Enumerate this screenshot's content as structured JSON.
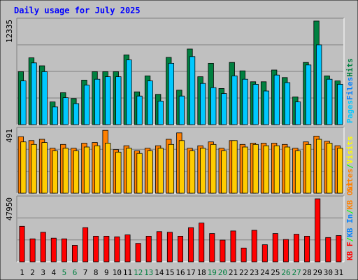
{
  "chart_data": {
    "type": "bar",
    "title": "Daily usage for July 2025",
    "categories": [
      "1",
      "2",
      "3",
      "4",
      "5",
      "6",
      "7",
      "8",
      "9",
      "10",
      "11",
      "12",
      "13",
      "14",
      "15",
      "16",
      "17",
      "18",
      "19",
      "20",
      "21",
      "22",
      "23",
      "24",
      "25",
      "26",
      "27",
      "28",
      "29",
      "30",
      "31"
    ],
    "weekend_days": [
      "5",
      "6",
      "12",
      "13",
      "19",
      "20",
      "26",
      "27"
    ],
    "panels": [
      {
        "id": "hits-files-pages",
        "max_label": "12335",
        "ylim": [
          0,
          12335
        ],
        "legend": [
          {
            "label": "Pages",
            "color": "#00c8ff"
          },
          {
            "label": "Files",
            "color": "#0080ff"
          },
          {
            "label": "Hits",
            "color": "#008040"
          }
        ],
        "series": [
          {
            "name": "Hits",
            "color": "#008040",
            "values": [
              6300,
              7950,
              7000,
              2700,
              3800,
              3100,
              5300,
              6300,
              6300,
              6300,
              8300,
              3900,
              5800,
              3600,
              8000,
              4100,
              9000,
              5700,
              7300,
              4300,
              7400,
              6400,
              5100,
              5100,
              6500,
              5600,
              3300,
              7400,
              12335,
              5800,
              5200
            ]
          },
          {
            "name": "Pages",
            "color": "#00c8ff",
            "values": [
              5200,
              7350,
              6300,
              2100,
              3200,
              2500,
              4700,
              5400,
              5700,
              5700,
              7700,
              3400,
              5200,
              2800,
              7300,
              3400,
              8100,
              4900,
              4400,
              3700,
              5800,
              5400,
              4800,
              4000,
              5900,
              5000,
              2700,
              7100,
              9500,
              5400,
              4800
            ]
          }
        ]
      },
      {
        "id": "visits-sites",
        "max_label": "491",
        "ylim": [
          0,
          491
        ],
        "legend": [
          {
            "label": "Sites",
            "color": "#ff8000"
          },
          {
            "label": "/",
            "color": "#00ff00"
          },
          {
            "label": "Visits",
            "color": "#ffff00"
          }
        ],
        "series": [
          {
            "name": "Visits",
            "color": "#ff8000",
            "values": [
              440,
              410,
              420,
              350,
              380,
              350,
              390,
              395,
              490,
              340,
              370,
              330,
              350,
              370,
              420,
              470,
              350,
              370,
              400,
              350,
              410,
              380,
              390,
              390,
              390,
              380,
              350,
              400,
              445,
              405,
              370
            ]
          },
          {
            "name": "Sites",
            "color": "#ffcc00",
            "values": [
              400,
              380,
              395,
              330,
              350,
              330,
              360,
              370,
              390,
              320,
              350,
              310,
              330,
              350,
              380,
              410,
              330,
              350,
              380,
              330,
              410,
              360,
              380,
              370,
              370,
              360,
              330,
              380,
              420,
              390,
              350
            ]
          }
        ]
      },
      {
        "id": "kbytes",
        "max_label": "47950",
        "ylim": [
          0,
          47950
        ],
        "legend": [
          {
            "label": "KB F",
            "color": "#ff0000"
          },
          {
            "label": "/",
            "color": "#00ff00"
          },
          {
            "label": "KB In",
            "color": "#0080ff"
          },
          {
            "label": "/",
            "color": "#00ff00"
          },
          {
            "label": "KB Out",
            "color": "#ff8000"
          }
        ],
        "series": [
          {
            "name": "KB F",
            "color": "#ff0000",
            "values": [
              27000,
              17500,
              22500,
              18000,
              17500,
              12500,
              26000,
              19500,
              19500,
              19000,
              20500,
              14000,
              19500,
              23000,
              22500,
              19500,
              26000,
              29500,
              21500,
              16500,
              23500,
              10500,
              24000,
              13000,
              21500,
              17000,
              21000,
              19500,
              47950,
              18500,
              20000
            ]
          }
        ]
      }
    ]
  }
}
